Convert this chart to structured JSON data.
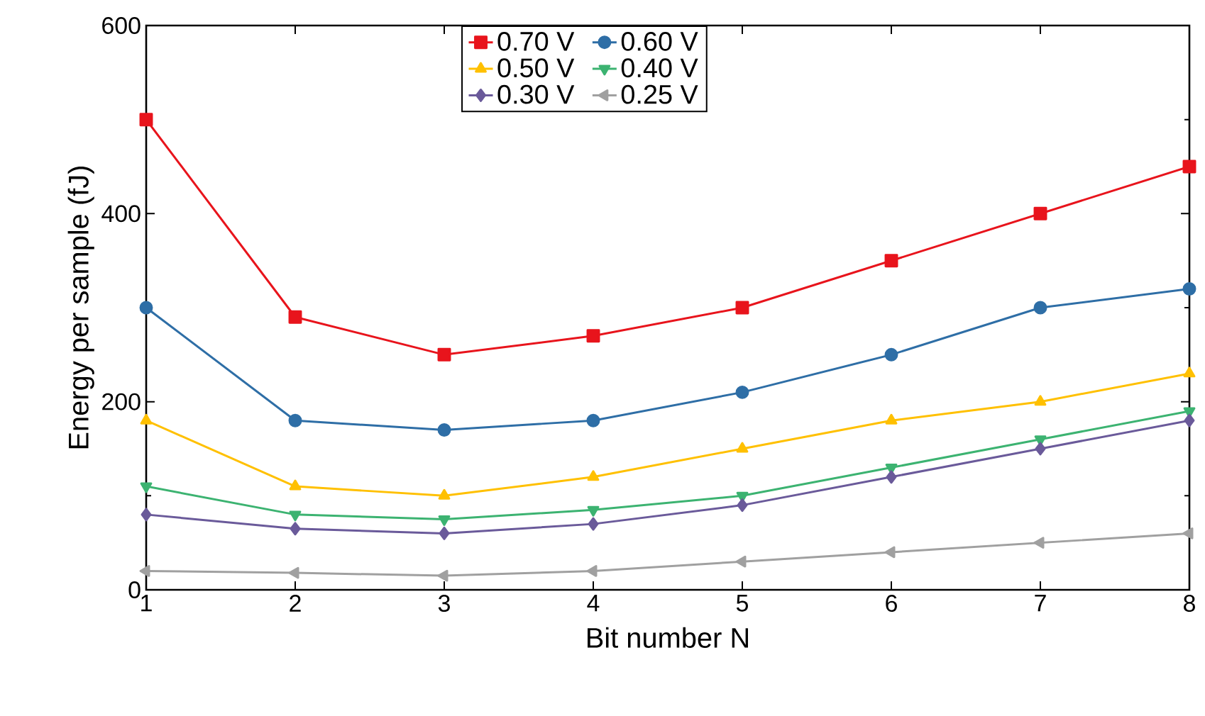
{
  "chart_data": {
    "type": "line",
    "xlabel": "Bit number N",
    "ylabel": "Energy per sample (fJ)",
    "x": [
      1,
      2,
      3,
      4,
      5,
      6,
      7,
      8
    ],
    "xlim": [
      1,
      8
    ],
    "xticks": [
      1,
      2,
      3,
      4,
      5,
      6,
      7,
      8
    ],
    "ylim": [
      0,
      600
    ],
    "yticks": [
      0,
      200,
      400,
      600
    ],
    "legend": "top",
    "grid": false,
    "line_style": "solid",
    "series": [
      {
        "name": "0.70 V",
        "color": "#e8141c",
        "marker": "square",
        "values": [
          500,
          290,
          250,
          270,
          300,
          350,
          400,
          450
        ]
      },
      {
        "name": "0.60 V",
        "color": "#2e6ea6",
        "marker": "circle",
        "values": [
          300,
          180,
          170,
          180,
          210,
          250,
          300,
          320
        ]
      },
      {
        "name": "0.50 V",
        "color": "#ffc000",
        "marker": "triangle",
        "values": [
          180,
          110,
          100,
          120,
          150,
          180,
          200,
          230
        ]
      },
      {
        "name": "0.40 V",
        "color": "#3cb371",
        "marker": "triangle-down",
        "values": [
          110,
          80,
          75,
          85,
          100,
          130,
          160,
          190
        ]
      },
      {
        "name": "0.30 V",
        "color": "#6a5a9a",
        "marker": "diamond",
        "values": [
          80,
          65,
          60,
          70,
          90,
          120,
          150,
          180
        ]
      },
      {
        "name": "0.25 V",
        "color": "#a0a0a0",
        "marker": "triangle-left",
        "values": [
          20,
          18,
          15,
          20,
          30,
          40,
          50,
          60
        ]
      }
    ]
  }
}
